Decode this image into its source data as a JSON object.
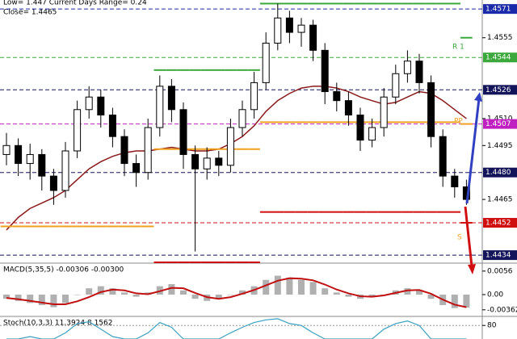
{
  "chart_data": {
    "type": "candlestick",
    "header": [
      "Low= 1.447  Current Days Range= 0.24",
      "Close= 1.4465"
    ],
    "open": [
      1.449,
      1.4495,
      1.4485,
      1.449,
      1.4478,
      1.447,
      1.4492,
      1.4515,
      1.4522,
      1.4512,
      1.45,
      1.4485,
      1.448,
      1.4505,
      1.4528,
      1.4515,
      1.449,
      1.4482,
      1.4488,
      1.4484,
      1.4505,
      1.4515,
      1.453,
      1.4552,
      1.4566,
      1.4558,
      1.4562,
      1.4548,
      1.4525,
      1.452,
      1.4512,
      1.4498,
      1.4505,
      1.4522,
      1.4535,
      1.4542,
      1.453,
      1.45,
      1.4478,
      1.4472
    ],
    "high": [
      1.4502,
      1.4499,
      1.4496,
      1.4493,
      1.4482,
      1.4497,
      1.452,
      1.4528,
      1.4526,
      1.4516,
      1.4504,
      1.449,
      1.451,
      1.4534,
      1.4532,
      1.4519,
      1.4495,
      1.4494,
      1.4492,
      1.451,
      1.452,
      1.4536,
      1.4558,
      1.4574,
      1.457,
      1.4566,
      1.4565,
      1.4552,
      1.453,
      1.4525,
      1.4516,
      1.451,
      1.4527,
      1.454,
      1.4548,
      1.4546,
      1.4534,
      1.4504,
      1.4482,
      1.4476
    ],
    "low": [
      1.4484,
      1.4478,
      1.4476,
      1.447,
      1.4462,
      1.4466,
      1.4488,
      1.451,
      1.4505,
      1.4494,
      1.4478,
      1.4472,
      1.4476,
      1.45,
      1.4508,
      1.4482,
      1.4436,
      1.4476,
      1.4478,
      1.448,
      1.45,
      1.451,
      1.4526,
      1.4548,
      1.4552,
      1.455,
      1.4542,
      1.4518,
      1.4514,
      1.4506,
      1.4492,
      1.4494,
      1.45,
      1.4518,
      1.453,
      1.4524,
      1.4494,
      1.4472,
      1.4466,
      1.4462
    ],
    "close": [
      1.4495,
      1.4485,
      1.449,
      1.4478,
      1.447,
      1.4492,
      1.4515,
      1.4522,
      1.4512,
      1.45,
      1.4485,
      1.448,
      1.4505,
      1.4528,
      1.4515,
      1.449,
      1.4482,
      1.4488,
      1.4484,
      1.4505,
      1.4515,
      1.453,
      1.4552,
      1.4566,
      1.4558,
      1.4562,
      1.4548,
      1.4525,
      1.452,
      1.4512,
      1.4498,
      1.4505,
      1.4522,
      1.4535,
      1.4542,
      1.453,
      1.45,
      1.4478,
      1.4472,
      1.4465
    ],
    "series": [
      {
        "color": "#8b1a1a",
        "values": [
          1.4448,
          1.4455,
          1.446,
          1.4463,
          1.4466,
          1.447,
          1.4476,
          1.4482,
          1.4486,
          1.4489,
          1.4491,
          1.4492,
          1.4492,
          1.4493,
          1.4494,
          1.4493,
          1.4492,
          1.4492,
          1.4493,
          1.4496,
          1.45,
          1.4506,
          1.4514,
          1.452,
          1.4524,
          1.4527,
          1.4528,
          1.4528,
          1.4527,
          1.4525,
          1.4522,
          1.452,
          1.4518,
          1.4519,
          1.4522,
          1.4525,
          1.4524,
          1.452,
          1.4515,
          1.451
        ]
      },
      {
        "color": "#3aa83a",
        "step": true,
        "values": [
          null,
          null,
          null,
          null,
          null,
          null,
          null,
          null,
          null,
          null,
          null,
          null,
          null,
          1.4537,
          1.4537,
          1.4537,
          1.4537,
          1.4537,
          1.4537,
          1.4537,
          1.4537,
          1.4537,
          1.4574,
          1.4574,
          1.4574,
          1.4574,
          1.4574,
          1.4574,
          1.4574,
          1.4574,
          1.4574,
          1.4574,
          1.4574,
          1.4574,
          1.4574,
          1.4574,
          1.4574,
          1.4574,
          1.4574,
          1.4555
        ]
      },
      {
        "color": "#f0a020",
        "step": true,
        "values": [
          1.445,
          1.445,
          1.445,
          1.445,
          1.445,
          1.445,
          1.445,
          1.445,
          1.445,
          1.445,
          1.445,
          1.445,
          1.445,
          1.4493,
          1.4493,
          1.4493,
          1.4493,
          1.4493,
          1.4493,
          1.4493,
          1.4493,
          1.4493,
          1.4508,
          1.4508,
          1.4508,
          1.4508,
          1.4508,
          1.4508,
          1.4508,
          1.4508,
          1.4508,
          1.4508,
          1.4508,
          1.4508,
          1.4508,
          1.4508,
          1.4508,
          1.4508,
          1.4508,
          1.4507
        ]
      },
      {
        "color": "#d01010",
        "step": true,
        "values": [
          null,
          null,
          null,
          null,
          null,
          null,
          null,
          null,
          null,
          null,
          null,
          null,
          null,
          1.443,
          1.443,
          1.443,
          1.443,
          1.443,
          1.443,
          1.443,
          1.443,
          1.443,
          1.4458,
          1.4458,
          1.4458,
          1.4458,
          1.4458,
          1.4458,
          1.4458,
          1.4458,
          1.4458,
          1.4458,
          1.4458,
          1.4458,
          1.4458,
          1.4458,
          1.4458,
          1.4458,
          1.4458,
          1.4452
        ]
      }
    ],
    "annotations": [
      "R 1",
      "PP",
      "S"
    ],
    "ylim": [
      1.443,
      1.4576
    ],
    "yticks": [
      1.4555,
      {
        "value": 1.451,
        "label": "1.4510"
      },
      1.4495,
      1.4465
    ],
    "levels": [
      {
        "value": 1.4571,
        "color": "#1a2aa8"
      },
      {
        "value": 1.4544,
        "color": "#3aa83a"
      },
      {
        "value": 1.4526,
        "color": "#14145a"
      },
      {
        "value": 1.4507,
        "color": "#c020c0"
      },
      {
        "value": 1.448,
        "label": "1.4480",
        "color": "#14145a"
      },
      {
        "value": 1.4452,
        "color": "#d01010"
      },
      {
        "value": 1.4434,
        "color": "#14145a"
      }
    ],
    "macd": {
      "title": "MACD(5,35,5) -0.00306 -0.00300",
      "ylim": [
        -0.005,
        0.0073
      ],
      "yticks": [
        0.0056,
        {
          "value": 0,
          "label": "0.00"
        },
        -0.00362
      ],
      "histogram": [
        -0.001,
        -0.0015,
        -0.002,
        -0.0025,
        -0.003,
        -0.002,
        0.0,
        0.0015,
        0.002,
        0.0015,
        0.0005,
        -0.0005,
        0.0005,
        0.002,
        0.0025,
        0.001,
        -0.001,
        -0.0015,
        -0.001,
        0.0,
        0.001,
        0.002,
        0.0035,
        0.0045,
        0.004,
        0.0035,
        0.003,
        0.0015,
        0.0005,
        -0.0005,
        -0.001,
        -0.0005,
        0.0,
        0.001,
        0.0015,
        0.001,
        -0.001,
        -0.0025,
        -0.0032,
        -0.0031
      ],
      "signal": [
        -0.0008,
        -0.0011,
        -0.0015,
        -0.0019,
        -0.0023,
        -0.0023,
        -0.0016,
        -0.0006,
        0.0006,
        0.0012,
        0.001,
        0.0003,
        0.0001,
        0.0008,
        0.0016,
        0.0015,
        0.0004,
        -0.0006,
        -0.001,
        -0.0006,
        0.0002,
        0.0011,
        0.0022,
        0.0033,
        0.0039,
        0.0038,
        0.0034,
        0.0024,
        0.0012,
        0.0003,
        -0.0004,
        -0.0005,
        -0.0002,
        0.0004,
        0.001,
        0.0011,
        0.0002,
        -0.0012,
        -0.0024,
        -0.003
      ],
      "hist_color": "#b0b0b0",
      "signal_color": "#c01010"
    },
    "stoch": {
      "title": "Stoch(10,3,3) 11.3924 8.1562",
      "ylim": [
        0,
        100
      ],
      "yticks": [
        80
      ],
      "values": [
        40,
        30,
        50,
        25,
        15,
        60,
        85,
        90,
        70,
        50,
        30,
        25,
        60,
        88,
        75,
        40,
        20,
        30,
        28,
        60,
        75,
        88,
        95,
        98,
        85,
        80,
        60,
        35,
        30,
        25,
        20,
        40,
        70,
        85,
        92,
        80,
        40,
        18,
        12,
        11
      ],
      "color": "#3aa0c0"
    }
  }
}
